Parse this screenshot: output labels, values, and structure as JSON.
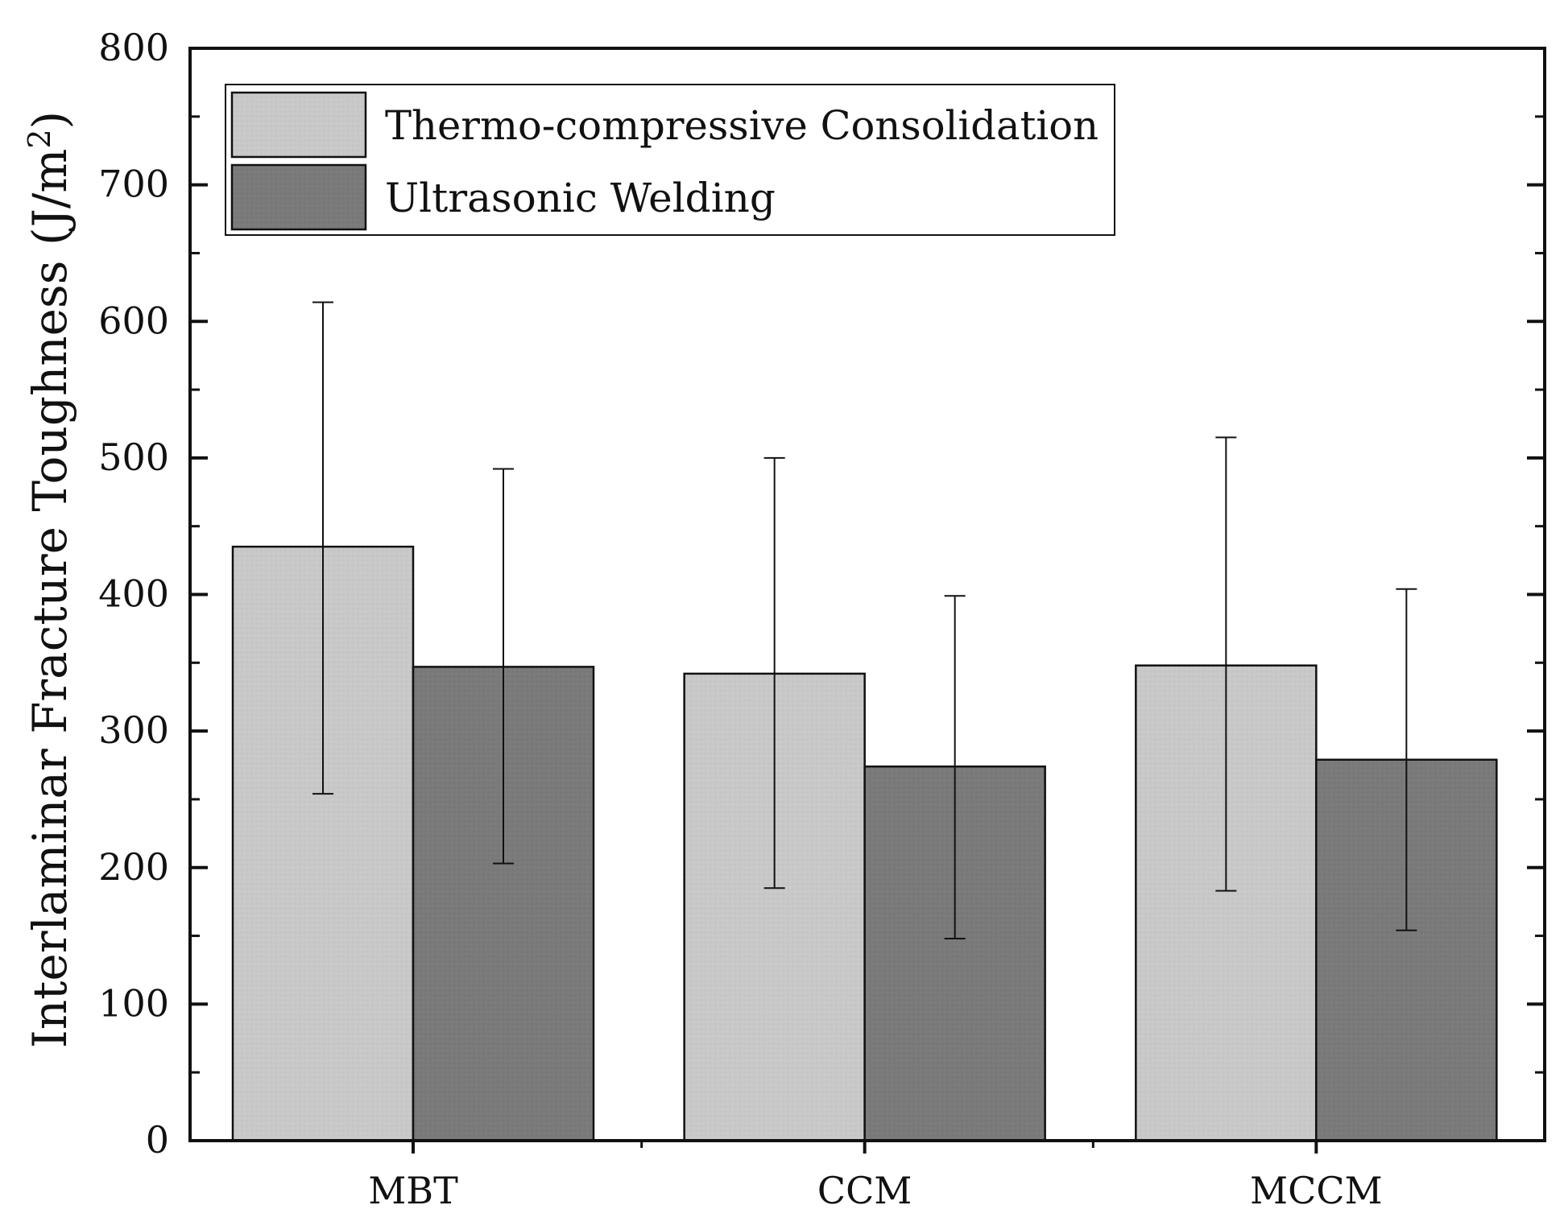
{
  "chart_data": {
    "type": "bar",
    "title": "",
    "xlabel": "",
    "ylabel": "Interlaminar Fracture Toughness (J/m",
    "ylabel_superscript": "2",
    "ylabel_close": ")",
    "ylim": [
      0,
      800
    ],
    "yticks": [
      "0",
      "100",
      "200",
      "300",
      "400",
      "500",
      "600",
      "700",
      "800"
    ],
    "categories": [
      "MBT",
      "CCM",
      "MCCM"
    ],
    "legend_position": "top-left",
    "grid": false,
    "series": [
      {
        "name": "Thermo-compressive Consolidation",
        "color": "#c8c8c8",
        "values": [
          435,
          342,
          348
        ],
        "error_low": [
          254,
          185,
          183
        ],
        "error_high": [
          614,
          500,
          515
        ]
      },
      {
        "name": "Ultrasonic Welding",
        "color": "#7a7a7a",
        "values": [
          347,
          274,
          279
        ],
        "error_low": [
          203,
          148,
          154
        ],
        "error_high": [
          492,
          399,
          404
        ]
      }
    ]
  }
}
